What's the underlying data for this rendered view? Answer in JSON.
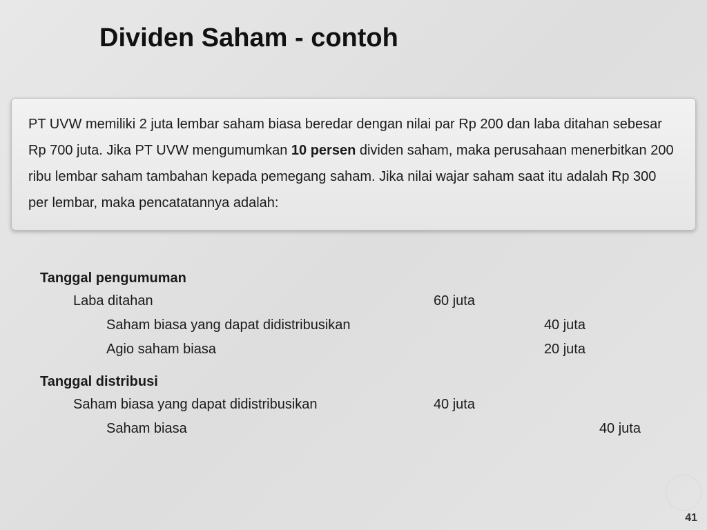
{
  "title": "Dividen Saham - contoh",
  "paragraph": {
    "pre": "PT UVW memiliki 2 juta lembar saham biasa beredar dengan nilai par Rp 200 dan laba ditahan sebesar Rp 700 juta. Jika PT UVW mengumumkan ",
    "bold": "10 persen",
    "post": " dividen saham, maka perusahaan menerbitkan 200 ribu lembar saham tambahan kepada pemegang saham. Jika nilai wajar saham saat itu adalah Rp 300 per lembar, maka pencatatannya adalah:"
  },
  "section1": {
    "heading": "Tanggal pengumuman",
    "rows": [
      {
        "account": "Laba ditahan",
        "amount": "60 juta"
      },
      {
        "account": "Saham biasa yang dapat didistribusikan",
        "amount": "40 juta"
      },
      {
        "account": "Agio saham biasa",
        "amount": "20 juta"
      }
    ]
  },
  "section2": {
    "heading": "Tanggal distribusi",
    "rows": [
      {
        "account": "Saham biasa yang dapat didistribusikan",
        "amount": "40 juta"
      },
      {
        "account": "Saham biasa",
        "amount": "40 juta"
      }
    ]
  },
  "page_number": "41"
}
